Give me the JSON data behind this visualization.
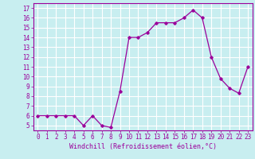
{
  "x": [
    0,
    1,
    2,
    3,
    4,
    5,
    6,
    7,
    8,
    9,
    10,
    11,
    12,
    13,
    14,
    15,
    16,
    17,
    18,
    19,
    20,
    21,
    22,
    23
  ],
  "y": [
    6,
    6,
    6,
    6,
    6,
    5,
    6,
    5,
    4.8,
    8.5,
    14,
    14,
    14.5,
    15.5,
    15.5,
    15.5,
    16,
    16.8,
    16,
    12,
    9.8,
    8.8,
    8.3,
    11
  ],
  "line_color": "#9b009b",
  "marker": "D",
  "marker_size": 1.8,
  "bg_color": "#c8eef0",
  "grid_color": "#ffffff",
  "xlabel": "Windchill (Refroidissement éolien,°C)",
  "xlabel_color": "#9b009b",
  "xlabel_fontsize": 6.0,
  "tick_color": "#9b009b",
  "tick_fontsize": 5.5,
  "ylim": [
    4.5,
    17.5
  ],
  "xlim": [
    -0.5,
    23.5
  ],
  "yticks": [
    5,
    6,
    7,
    8,
    9,
    10,
    11,
    12,
    13,
    14,
    15,
    16,
    17
  ],
  "xticks": [
    0,
    1,
    2,
    3,
    4,
    5,
    6,
    7,
    8,
    9,
    10,
    11,
    12,
    13,
    14,
    15,
    16,
    17,
    18,
    19,
    20,
    21,
    22,
    23
  ]
}
